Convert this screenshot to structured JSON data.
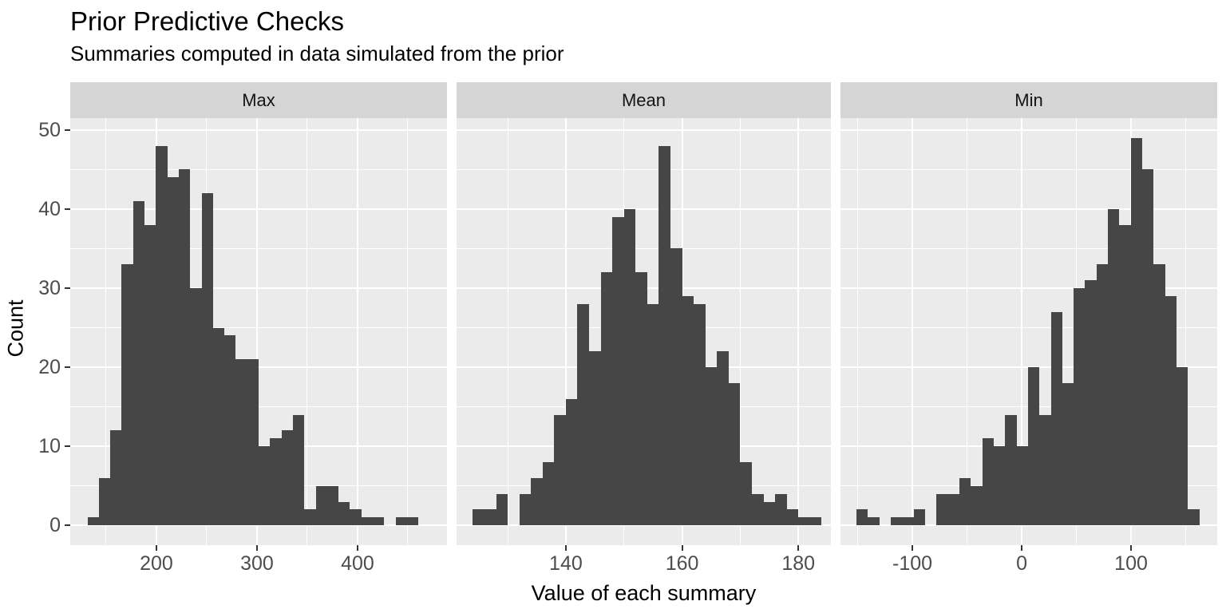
{
  "title": "Prior Predictive Checks",
  "subtitle": "Summaries computed in data simulated from the prior",
  "xlabel": "Value of each summary",
  "ylabel": "Count",
  "colors": {
    "background": "#FFFFFF",
    "panel_bg": "#EBEBEB",
    "strip_bg": "#D5D5D5",
    "bar": "#464646",
    "grid": "#FFFFFF",
    "axis_text": "#4D4D4D",
    "tick_mark": "#333333",
    "text": "#000000"
  },
  "y_axis": {
    "title": "Count",
    "tick_values": [
      0,
      10,
      20,
      30,
      40,
      50
    ],
    "tick_labels": [
      "0",
      "10",
      "20",
      "30",
      "40",
      "50"
    ],
    "minor_values": [
      5,
      15,
      25,
      35,
      45
    ],
    "domain": [
      -2.5,
      51.5
    ]
  },
  "chart_data": {
    "type": "bar",
    "subtype": "faceted-histogram",
    "title": "Prior Predictive Checks",
    "subtitle": "Summaries computed in data simulated from the prior",
    "xlabel": "Value of each summary",
    "ylabel": "Count",
    "grid": "on",
    "legend": "none",
    "ylim": [
      -2.5,
      51.5
    ],
    "facets": [
      {
        "label": "Max",
        "x_domain": [
          114.3,
          488.9
        ],
        "x_ticks": [
          200,
          300,
          400
        ],
        "x_tick_labels": [
          "200",
          "300",
          "400"
        ],
        "bin_start": 131.4,
        "bin_width": 11.35,
        "counts": [
          1,
          6,
          12,
          33,
          41,
          38,
          48,
          44,
          45,
          30,
          42,
          25,
          24,
          21,
          21,
          10,
          11,
          12,
          14,
          2,
          5,
          5,
          3,
          2,
          1,
          1,
          0,
          1,
          1
        ]
      },
      {
        "label": "Mean",
        "x_domain": [
          121.2,
          185.6
        ],
        "x_ticks": [
          140,
          160,
          180
        ],
        "x_tick_labels": [
          "140",
          "160",
          "180"
        ],
        "bin_start": 124.0,
        "bin_width": 2.0,
        "counts": [
          2,
          2,
          4,
          0,
          4,
          6,
          8,
          14,
          16,
          28,
          22,
          32,
          39,
          40,
          32,
          28,
          48,
          35,
          29,
          28,
          20,
          22,
          18,
          8,
          4,
          3,
          4,
          2,
          1,
          1
        ]
      },
      {
        "label": "Min",
        "x_domain": [
          -165.7,
          178.8
        ],
        "x_ticks": [
          -100,
          0,
          100
        ],
        "x_tick_labels": [
          "-100",
          "0",
          "100"
        ],
        "bin_start": -151.0,
        "bin_width": 10.45,
        "counts": [
          2,
          1,
          0,
          1,
          1,
          2,
          0,
          4,
          4,
          6,
          5,
          11,
          10,
          14,
          10,
          20,
          14,
          27,
          18,
          30,
          31,
          33,
          40,
          38,
          49,
          45,
          33,
          29,
          20,
          2
        ]
      }
    ]
  }
}
